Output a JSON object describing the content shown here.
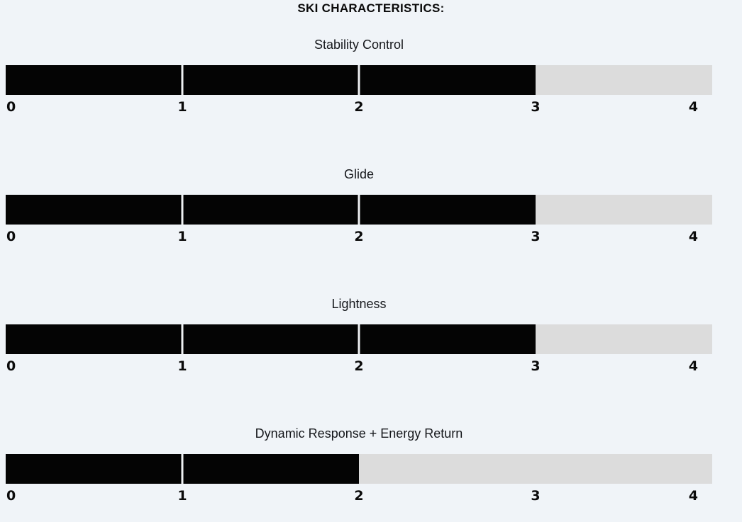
{
  "page": {
    "background": "#f0f4f8"
  },
  "header": {
    "title": "SKI CHARACTERISTICS:"
  },
  "chart_data": {
    "type": "bar",
    "orientation": "horizontal",
    "title": "SKI CHARACTERISTICS:",
    "scale_min": 0,
    "scale_max": 4,
    "tick_labels": [
      "0",
      "1",
      "2",
      "3",
      "4"
    ],
    "series": [
      {
        "name": "Stability Control",
        "value": 3
      },
      {
        "name": "Glide",
        "value": 3
      },
      {
        "name": "Lightness",
        "value": 3
      },
      {
        "name": "Dynamic Response + Energy Return",
        "value": 2
      }
    ],
    "colors": {
      "filled": "#040404",
      "unfilled": "#dcdcdc",
      "divider": "#eef0f2"
    },
    "legend": "none",
    "grid": "off"
  }
}
